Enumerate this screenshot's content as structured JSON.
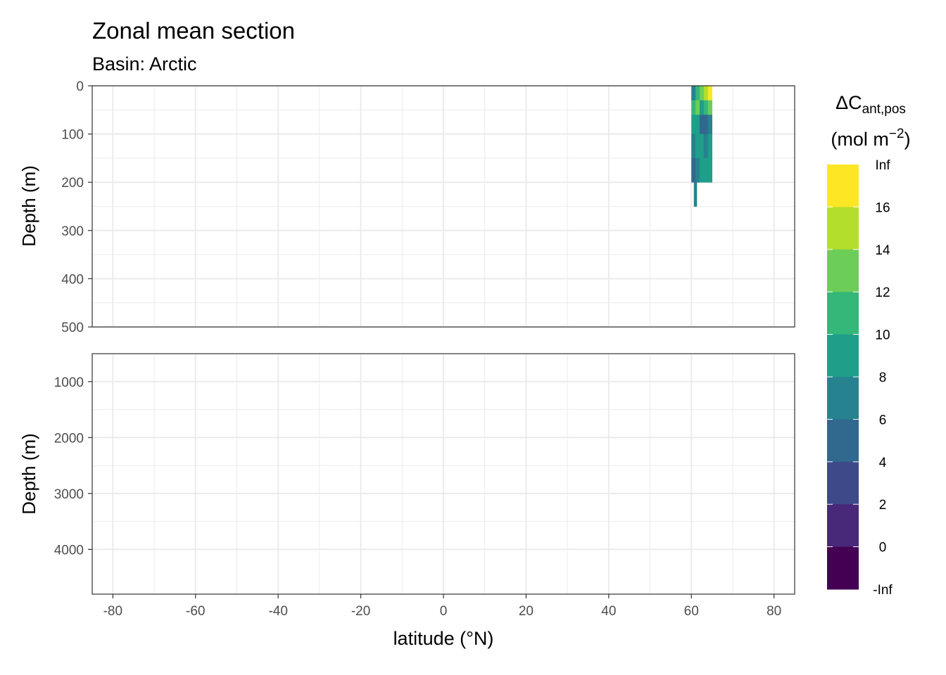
{
  "chart_data": {
    "type": "heatmap",
    "title": "Zonal mean section",
    "subtitle": "Basin: Arctic",
    "xlabel": "latitude (°N)",
    "ylabel": "Depth (m)",
    "x_ticks": [
      -80,
      -60,
      -40,
      -20,
      0,
      20,
      40,
      60,
      80
    ],
    "xlim": [
      -85,
      85
    ],
    "grid": true,
    "panels": [
      {
        "name": "upper",
        "ylabel": "Depth (m)",
        "ylim": [
          0,
          500
        ],
        "y_ticks": [
          0,
          100,
          200,
          300,
          400,
          500
        ],
        "y_reversed": true
      },
      {
        "name": "lower",
        "ylabel": "Depth (m)",
        "ylim": [
          500,
          4800
        ],
        "y_ticks": [
          1000,
          2000,
          3000,
          4000
        ],
        "y_reversed": true
      }
    ],
    "cells": [
      {
        "lat": 60.0,
        "lat2": 61.0,
        "d1": 0,
        "d2": 30,
        "bin": 4
      },
      {
        "lat": 60.0,
        "lat2": 61.0,
        "d1": 30,
        "d2": 60,
        "bin": 6
      },
      {
        "lat": 60.0,
        "lat2": 61.0,
        "d1": 60,
        "d2": 100,
        "bin": 5
      },
      {
        "lat": 60.0,
        "lat2": 61.0,
        "d1": 100,
        "d2": 150,
        "bin": 4
      },
      {
        "lat": 60.0,
        "lat2": 61.0,
        "d1": 150,
        "d2": 200,
        "bin": 3
      },
      {
        "lat": 61.0,
        "lat2": 62.0,
        "d1": 0,
        "d2": 30,
        "bin": 6
      },
      {
        "lat": 61.0,
        "lat2": 62.0,
        "d1": 30,
        "d2": 60,
        "bin": 7
      },
      {
        "lat": 61.0,
        "lat2": 62.0,
        "d1": 60,
        "d2": 100,
        "bin": 5
      },
      {
        "lat": 61.0,
        "lat2": 62.0,
        "d1": 100,
        "d2": 150,
        "bin": 5
      },
      {
        "lat": 61.0,
        "lat2": 62.0,
        "d1": 150,
        "d2": 200,
        "bin": 4
      },
      {
        "lat": 62.0,
        "lat2": 63.0,
        "d1": 0,
        "d2": 30,
        "bin": 7
      },
      {
        "lat": 62.0,
        "lat2": 63.0,
        "d1": 30,
        "d2": 60,
        "bin": 5
      },
      {
        "lat": 62.0,
        "lat2": 63.0,
        "d1": 60,
        "d2": 100,
        "bin": 3
      },
      {
        "lat": 62.0,
        "lat2": 63.0,
        "d1": 100,
        "d2": 150,
        "bin": 5
      },
      {
        "lat": 62.0,
        "lat2": 63.0,
        "d1": 150,
        "d2": 200,
        "bin": 5
      },
      {
        "lat": 63.0,
        "lat2": 64.0,
        "d1": 0,
        "d2": 30,
        "bin": 8
      },
      {
        "lat": 63.0,
        "lat2": 64.0,
        "d1": 30,
        "d2": 60,
        "bin": 6
      },
      {
        "lat": 63.0,
        "lat2": 64.0,
        "d1": 60,
        "d2": 100,
        "bin": 3
      },
      {
        "lat": 63.0,
        "lat2": 64.0,
        "d1": 100,
        "d2": 150,
        "bin": 4
      },
      {
        "lat": 63.0,
        "lat2": 64.0,
        "d1": 150,
        "d2": 200,
        "bin": 5
      },
      {
        "lat": 64.0,
        "lat2": 65.0,
        "d1": 0,
        "d2": 30,
        "bin": 9
      },
      {
        "lat": 64.0,
        "lat2": 65.0,
        "d1": 30,
        "d2": 60,
        "bin": 7
      },
      {
        "lat": 64.0,
        "lat2": 65.0,
        "d1": 60,
        "d2": 100,
        "bin": 4
      },
      {
        "lat": 64.0,
        "lat2": 65.0,
        "d1": 100,
        "d2": 150,
        "bin": 5
      },
      {
        "lat": 64.0,
        "lat2": 65.0,
        "d1": 150,
        "d2": 200,
        "bin": 5
      },
      {
        "lat": 60.6,
        "lat2": 61.3,
        "d1": 200,
        "d2": 250,
        "bin": 4
      }
    ],
    "legend": {
      "title_main": "ΔC",
      "title_sub": "ant,pos",
      "unit_main": "(mol m",
      "unit_sup": "−2",
      "unit_close": ")",
      "position": "right",
      "breaks": [
        "Inf",
        "16",
        "14",
        "12",
        "10",
        "8",
        "6",
        "4",
        "2",
        "0",
        "-Inf"
      ],
      "colors_top_to_bottom": [
        "#FDE725",
        "#B4DE2C",
        "#6DCD59",
        "#35B779",
        "#1F9E89",
        "#26828E",
        "#31688E",
        "#3E4989",
        "#482878",
        "#440154"
      ]
    }
  }
}
